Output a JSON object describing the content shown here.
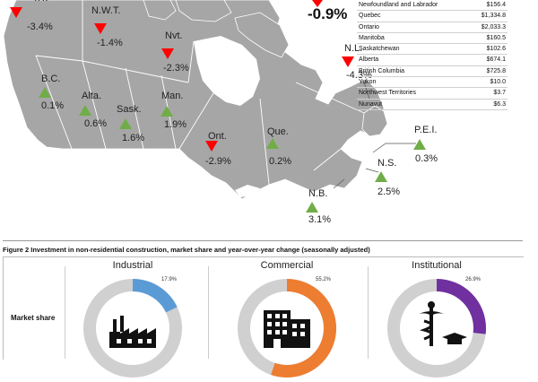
{
  "national": {
    "value": "-0.9%"
  },
  "provinces": [
    {
      "id": "yt",
      "label": "Y.T.",
      "value": "-3.4%",
      "direction": "down"
    },
    {
      "id": "nwt",
      "label": "N.W.T.",
      "value": "-1.4%",
      "direction": "down"
    },
    {
      "id": "nvt",
      "label": "Nvt.",
      "value": "-2.3%",
      "direction": "down"
    },
    {
      "id": "nl",
      "label": "N.L.",
      "value": "-4.3%",
      "direction": "down"
    },
    {
      "id": "bc",
      "label": "B.C.",
      "value": "0.1%",
      "direction": "up"
    },
    {
      "id": "alta",
      "label": "Alta.",
      "value": "0.6%",
      "direction": "up"
    },
    {
      "id": "sask",
      "label": "Sask.",
      "value": "1.6%",
      "direction": "up"
    },
    {
      "id": "man",
      "label": "Man.",
      "value": "1.9%",
      "direction": "up"
    },
    {
      "id": "ont",
      "label": "Ont.",
      "value": "-2.9%",
      "direction": "down"
    },
    {
      "id": "que",
      "label": "Que.",
      "value": "0.2%",
      "direction": "up"
    },
    {
      "id": "pei",
      "label": "P.E.I.",
      "value": "0.3%",
      "direction": "up"
    },
    {
      "id": "ns",
      "label": "N.S.",
      "value": "2.5%",
      "direction": "up"
    },
    {
      "id": "nb",
      "label": "N.B.",
      "value": "3.1%",
      "direction": "up"
    }
  ],
  "table": {
    "rows": [
      {
        "name": "Newfoundland and Labrador",
        "value": "$156.4"
      },
      {
        "name": "Quebec",
        "value": "$1,334.8"
      },
      {
        "name": "Ontario",
        "value": "$2,033.3"
      },
      {
        "name": "Manitoba",
        "value": "$160.5"
      },
      {
        "name": "Saskatchewan",
        "value": "$102.6"
      },
      {
        "name": "Alberta",
        "value": "$674.1"
      },
      {
        "name": "British Columbia",
        "value": "$725.8"
      },
      {
        "name": "Yukon",
        "value": "$10.0"
      },
      {
        "name": "Northwest Territories",
        "value": "$3.7"
      },
      {
        "name": "Nunavut",
        "value": "$6.3"
      }
    ]
  },
  "figure2": {
    "title": "Figure 2  Investment in non-residential construction, market share and year-over-year change (seasonally adjusted)",
    "row_label": "Market share"
  },
  "colors": {
    "land": "#a6a6a6",
    "water": "#ffffff",
    "down": "#ff0000",
    "up": "#70ad47",
    "ring": "#d0d0d0",
    "industrial": "#5b9bd5",
    "commercial": "#ed7d31",
    "institutional": "#7030a0"
  },
  "chart_data": [
    {
      "type": "pie",
      "subtype": "donut",
      "categories": [
        "Industrial",
        "Commercial",
        "Institutional"
      ],
      "values": [
        17.9,
        55.2,
        26.9
      ],
      "value_labels": [
        "17.9%",
        "55.2%",
        "26.9%"
      ],
      "icons": [
        "factory-icon",
        "office-building-icon",
        "caduceus-graduation-icon"
      ]
    }
  ]
}
